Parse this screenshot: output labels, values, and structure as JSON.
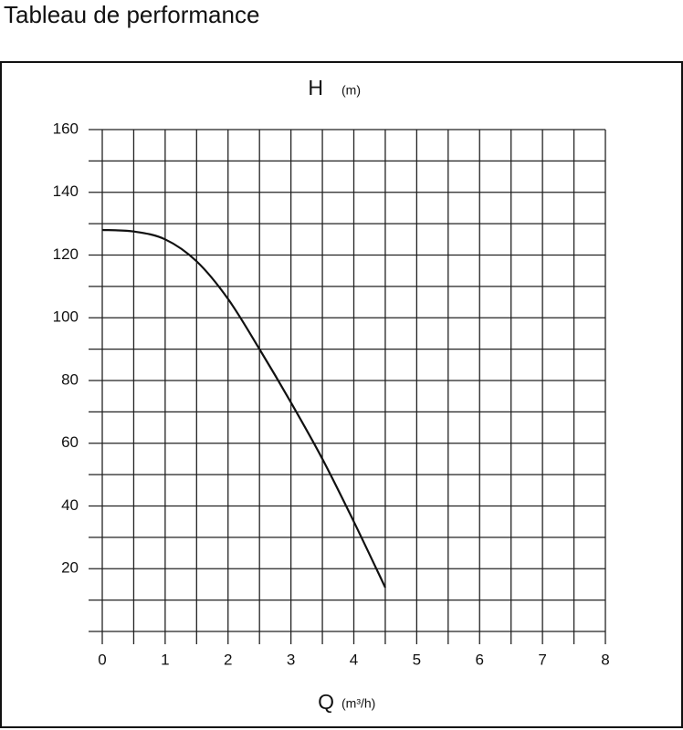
{
  "chart_data": {
    "type": "line",
    "title": "Tableau de performance",
    "ylabel": "H",
    "ylabel_unit": "(m)",
    "xlabel": "Q",
    "xlabel_unit": "(m³/h)",
    "x": [
      0,
      0.5,
      1,
      1.5,
      2,
      2.5,
      3,
      3.5,
      4,
      4.5
    ],
    "series": [
      {
        "color": "#111111",
        "values": [
          128,
          127.5,
          125,
          118,
          106,
          90,
          73,
          55,
          35,
          14
        ]
      }
    ],
    "xlim": [
      0,
      8
    ],
    "ylim": [
      0,
      160
    ],
    "xticks": [
      0,
      1,
      2,
      3,
      4,
      5,
      6,
      7,
      8
    ],
    "yticks": [
      20,
      40,
      60,
      80,
      100,
      120,
      140,
      160
    ],
    "xgrid": [
      0,
      0.5,
      1,
      1.5,
      2,
      2.5,
      3,
      3.5,
      4,
      4.5,
      5,
      5.5,
      6,
      6.5,
      7,
      7.5,
      8
    ],
    "ygrid": [
      0,
      10,
      20,
      30,
      40,
      50,
      60,
      70,
      80,
      90,
      100,
      110,
      120,
      130,
      140,
      150,
      160
    ]
  }
}
